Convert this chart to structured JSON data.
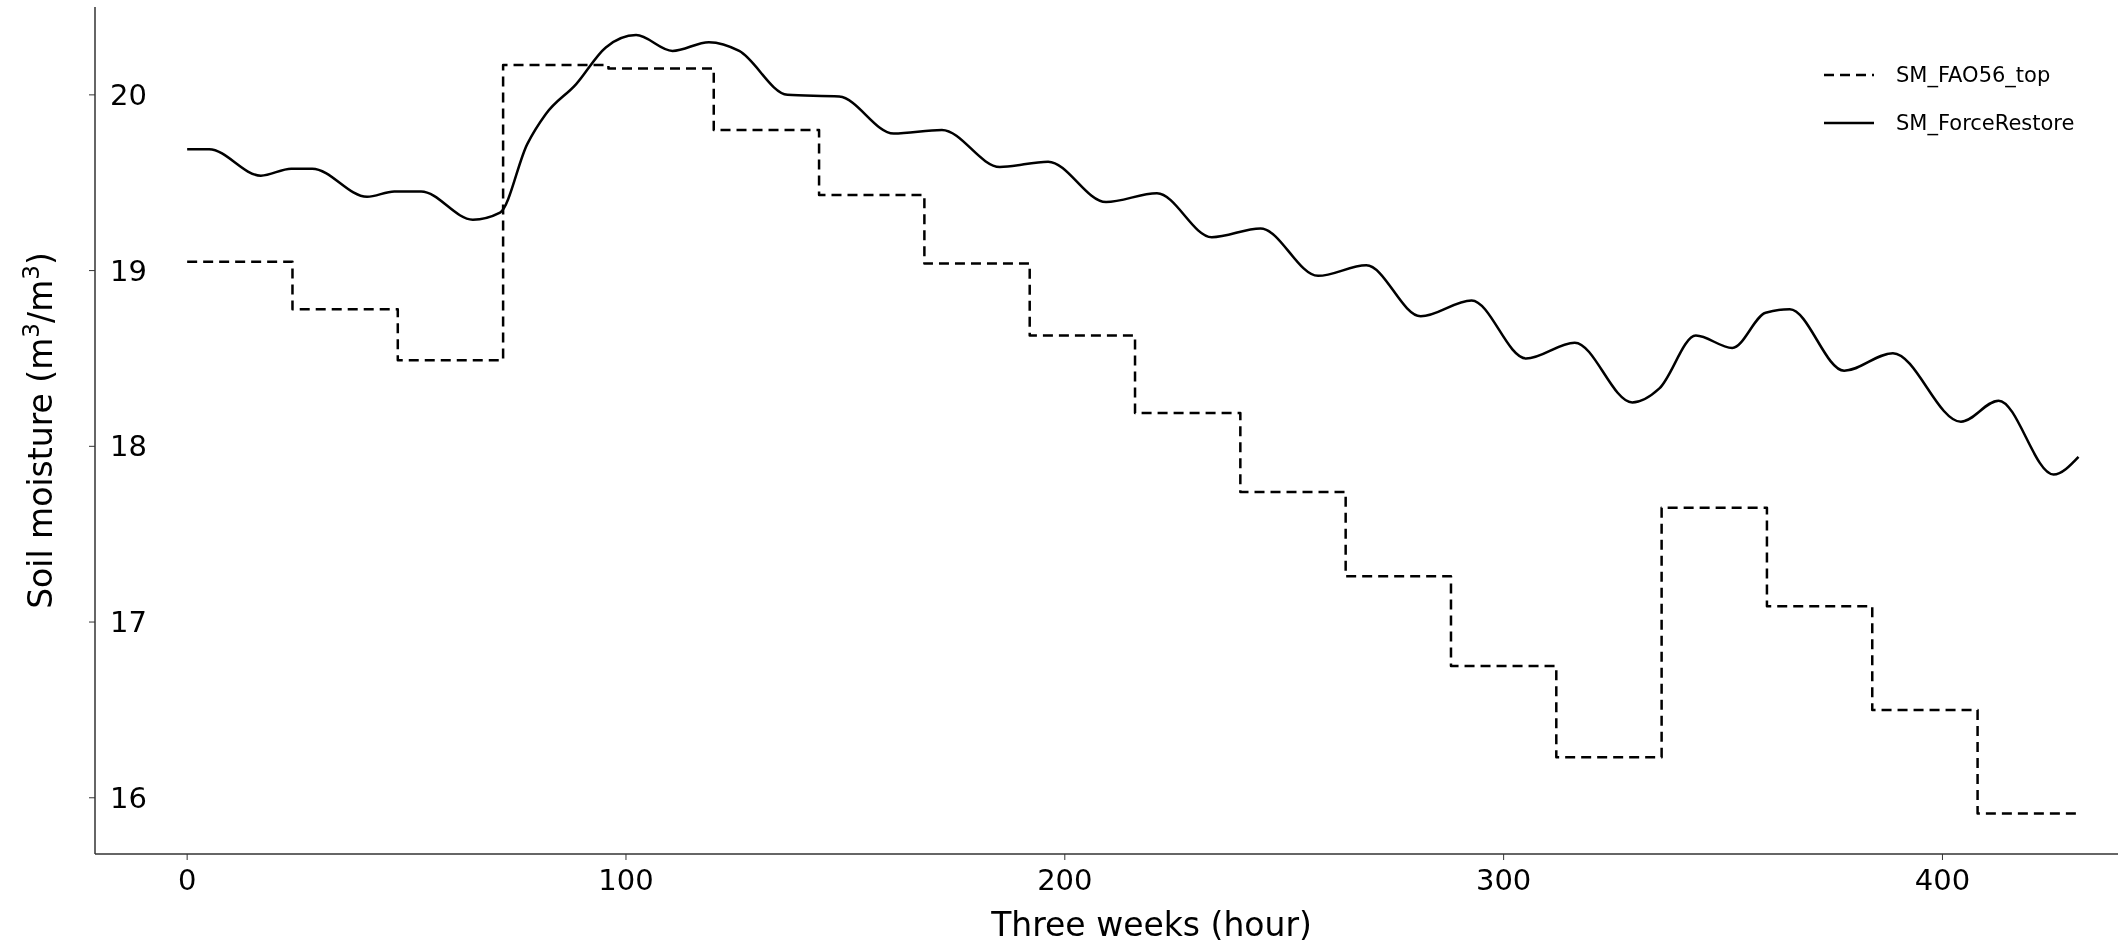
{
  "chart_data": {
    "type": "line",
    "xlabel": "Three weeks (hour)",
    "ylabel": "Soil moisture (m$^{3}$/m$^{3}$)",
    "xlim": [
      -21,
      440
    ],
    "ylim": [
      15.68,
      20.5
    ],
    "xticks": [
      0,
      100,
      200,
      300,
      400
    ],
    "yticks": [
      16,
      17,
      18,
      19,
      20
    ],
    "grid": false,
    "legend": "top right",
    "series": [
      {
        "name": "SM_FAO56_top",
        "type": "step",
        "line_style": "dashed",
        "color": "#000000",
        "x": [
          0,
          24,
          48,
          72,
          96,
          120,
          144,
          168,
          192,
          216,
          240,
          264,
          288,
          312,
          336,
          360,
          384,
          408,
          431
        ],
        "values": [
          19.05,
          18.78,
          18.49,
          20.17,
          20.15,
          19.8,
          19.43,
          19.04,
          18.63,
          18.19,
          17.74,
          17.26,
          16.75,
          16.23,
          17.65,
          17.09,
          16.5,
          15.91,
          15.91
        ]
      },
      {
        "name": "SM_ForceRestore",
        "line_style": "solid",
        "color": "#000000",
        "x": [
          0,
          5,
          16.8,
          23.7,
          28.5,
          41,
          47.2,
          53.3,
          65.1,
          71.3,
          77.5,
          81.7,
          88.6,
          95.4,
          102.3,
          110.6,
          118.9,
          125.8,
          136.8,
          148.6,
          161,
          172,
          185.2,
          196.2,
          209.4,
          221,
          233.5,
          244.6,
          257.7,
          268.7,
          281.1,
          292.7,
          305.1,
          316.2,
          329.3,
          335.5,
          343.8,
          352.1,
          359.7,
          365.2,
          377.6,
          388.7,
          404.2,
          412.8,
          425.3,
          431
        ],
        "values": [
          19.69,
          19.69,
          19.54,
          19.58,
          19.58,
          19.42,
          19.45,
          19.45,
          19.29,
          19.33,
          19.72,
          19.89,
          20.06,
          20.27,
          20.34,
          20.25,
          20.3,
          20.25,
          20.0,
          19.99,
          19.78,
          19.8,
          19.59,
          19.62,
          19.39,
          19.44,
          19.19,
          19.24,
          18.97,
          19.03,
          18.74,
          18.83,
          18.5,
          18.59,
          18.25,
          18.33,
          18.63,
          18.56,
          18.76,
          18.78,
          18.43,
          18.53,
          18.14,
          18.26,
          17.84,
          17.94
        ]
      }
    ]
  }
}
